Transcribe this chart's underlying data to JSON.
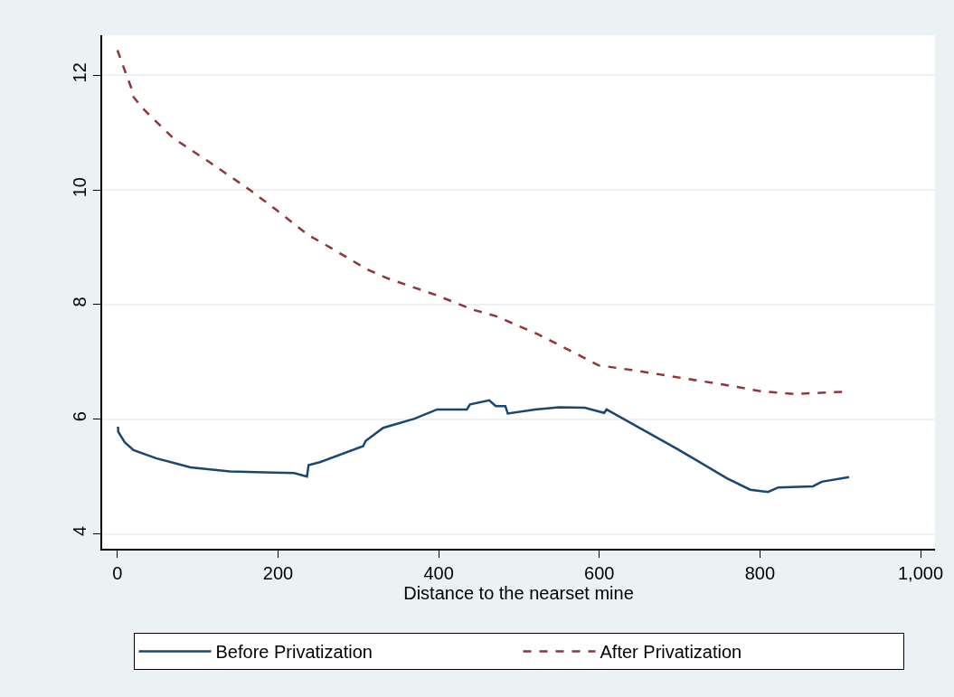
{
  "chart_data": {
    "type": "line",
    "xlabel": "Distance to the nearset mine",
    "xlim": [
      -19,
      1018
    ],
    "xticks": [
      0,
      200,
      400,
      600,
      800,
      {
        "value": 1000,
        "label": "1,000"
      }
    ],
    "ylim": [
      3.74,
      12.7
    ],
    "yticks": [
      4,
      6,
      8,
      10,
      12
    ],
    "grid": "y",
    "legend": "bottom",
    "series": [
      {
        "name": "Before Privatization",
        "color": "#1a476f",
        "line_style": "solid",
        "x": [
          0.7,
          1,
          9,
          20,
          48,
          91,
          140,
          194,
          220,
          236,
          238,
          252,
          306,
          309,
          331,
          370,
          398,
          435,
          439,
          463,
          471,
          483,
          486,
          520,
          550,
          582,
          606,
          609,
          696,
          759,
          788,
          810,
          823,
          866,
          877,
          911
        ],
        "values": [
          5.87,
          5.78,
          5.6,
          5.46,
          5.32,
          5.16,
          5.09,
          5.07,
          5.06,
          5.0,
          5.2,
          5.25,
          5.53,
          5.62,
          5.85,
          6.01,
          6.17,
          6.17,
          6.26,
          6.33,
          6.23,
          6.23,
          6.1,
          6.17,
          6.21,
          6.2,
          6.11,
          6.17,
          5.49,
          4.97,
          4.77,
          4.73,
          4.81,
          4.83,
          4.91,
          4.99
        ]
      },
      {
        "name": "After Privatization",
        "color": "#90353b",
        "line_style": "dashed",
        "x": [
          0,
          9,
          17,
          19,
          31,
          69,
          112,
          164,
          198,
          237,
          267,
          310,
          336,
          396,
          443,
          471,
          524,
          580,
          599,
          640,
          752,
          801,
          842,
          875,
          905
        ],
        "values": [
          12.44,
          12.09,
          11.79,
          11.64,
          11.43,
          10.91,
          10.51,
          10.01,
          9.65,
          9.22,
          8.98,
          8.62,
          8.46,
          8.17,
          7.91,
          7.8,
          7.48,
          7.08,
          6.94,
          6.86,
          6.61,
          6.49,
          6.44,
          6.46,
          6.48
        ]
      }
    ]
  }
}
